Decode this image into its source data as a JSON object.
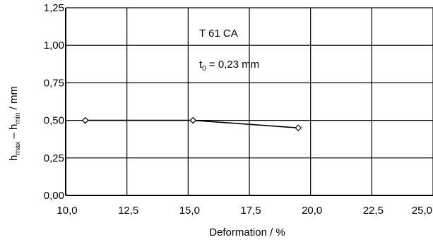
{
  "chart_data": {
    "type": "line",
    "title": "",
    "xlabel": "Deformation / %",
    "ylabel": {
      "h1": "h",
      "sub1": "max",
      "mid": " – h",
      "sub2": "min",
      "tail": " / mm"
    },
    "xlim": [
      10.0,
      25.0
    ],
    "ylim": [
      0.0,
      1.25
    ],
    "xticks": [
      "10,0",
      "12,5",
      "15,0",
      "17,5",
      "20,0",
      "22,5",
      "25,0"
    ],
    "yticks": [
      "0,00",
      "0,25",
      "0,50",
      "0,75",
      "1,00",
      "1,25"
    ],
    "grid": true,
    "annotations": {
      "material": "T 61 CA",
      "thickness": {
        "t": "t",
        "sub": "0",
        "rest": " = 0,23 mm"
      }
    },
    "series": [
      {
        "x": [
          10.8,
          15.2,
          19.5
        ],
        "y": [
          0.5,
          0.5,
          0.45
        ],
        "marker": "diamond-open",
        "color": "#000000"
      }
    ]
  }
}
